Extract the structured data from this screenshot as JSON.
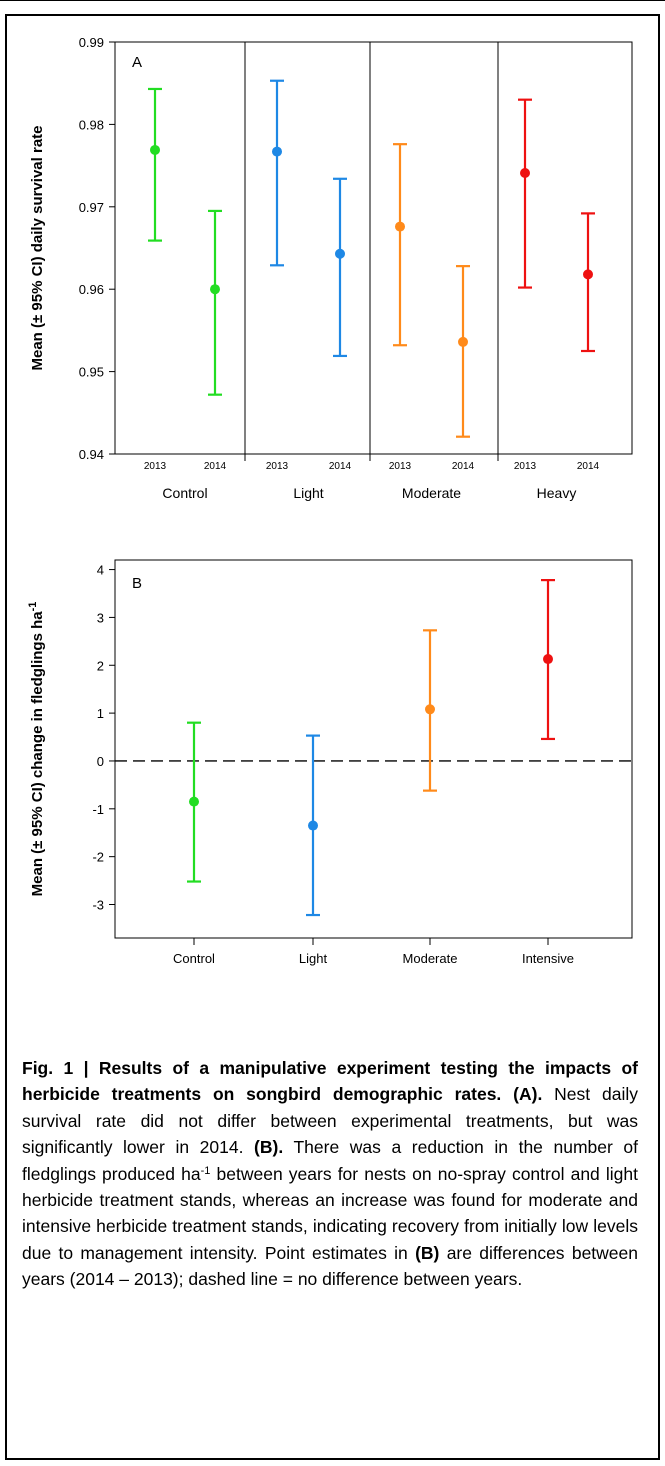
{
  "chart_data": [
    {
      "panel": "A",
      "type": "scatter",
      "ylabel": "Mean (± 95% CI) daily survival rate",
      "ylim": [
        0.94,
        0.99
      ],
      "y_ticks": [
        "0.94",
        "0.95",
        "0.96",
        "0.97",
        "0.98",
        "0.99"
      ],
      "groups": [
        "Control",
        "Light",
        "Moderate",
        "Heavy"
      ],
      "years": [
        "2013",
        "2014"
      ],
      "points": [
        {
          "group": "Control",
          "year": "2013",
          "mean": 0.9769,
          "lower": 0.9659,
          "upper": 0.9843,
          "color": "#22dd22"
        },
        {
          "group": "Control",
          "year": "2014",
          "mean": 0.96,
          "lower": 0.9472,
          "upper": 0.9695,
          "color": "#22dd22"
        },
        {
          "group": "Light",
          "year": "2013",
          "mean": 0.9767,
          "lower": 0.9629,
          "upper": 0.9853,
          "color": "#1e88e5"
        },
        {
          "group": "Light",
          "year": "2014",
          "mean": 0.9643,
          "lower": 0.9519,
          "upper": 0.9734,
          "color": "#1e88e5"
        },
        {
          "group": "Moderate",
          "year": "2013",
          "mean": 0.9676,
          "lower": 0.9532,
          "upper": 0.9776,
          "color": "#ff8a1a"
        },
        {
          "group": "Moderate",
          "year": "2014",
          "mean": 0.9536,
          "lower": 0.9421,
          "upper": 0.9628,
          "color": "#ff8a1a"
        },
        {
          "group": "Heavy",
          "year": "2013",
          "mean": 0.9741,
          "lower": 0.9602,
          "upper": 0.983,
          "color": "#ee1111"
        },
        {
          "group": "Heavy",
          "year": "2014",
          "mean": 0.9618,
          "lower": 0.9525,
          "upper": 0.9692,
          "color": "#ee1111"
        }
      ]
    },
    {
      "panel": "B",
      "type": "scatter",
      "ylabel": "Mean (± 95% CI) change in fledglings ha",
      "ylabel_sup": "-1",
      "ylim": [
        -3.7,
        4.2
      ],
      "y_ticks": [
        "-3",
        "-2",
        "-1",
        "0",
        "1",
        "2",
        "3",
        "4"
      ],
      "categories": [
        "Control",
        "Light",
        "Moderate",
        "Intensive"
      ],
      "reference_line": 0,
      "points": [
        {
          "category": "Control",
          "mean": -0.85,
          "lower": -2.52,
          "upper": 0.8,
          "color": "#22dd22"
        },
        {
          "category": "Light",
          "mean": -1.35,
          "lower": -3.22,
          "upper": 0.53,
          "color": "#1e88e5"
        },
        {
          "category": "Moderate",
          "mean": 1.08,
          "lower": -0.62,
          "upper": 2.73,
          "color": "#ff8a1a"
        },
        {
          "category": "Intensive",
          "mean": 2.13,
          "lower": 0.46,
          "upper": 3.78,
          "color": "#ee1111"
        }
      ]
    }
  ],
  "caption": {
    "figure_label": "Fig. 1 | Results of a manipulative experiment testing the impacts of herbicide treatments on songbird demographic rates.",
    "part_a_label": "(A).",
    "part_a_text": "Nest daily survival rate did not differ between experimental treatments, but was significantly lower in 2014.",
    "part_b_label": "(B).",
    "part_b_text_1": "There was a reduction in the number of fledglings produced ha",
    "part_b_sup": "-1",
    "part_b_text_2": "between years for nests on no-spray control and light herbicide treatment stands, whereas an increase was found for moderate and intensive herbicide treatment stands, indicating recovery from initially low levels due to management intensity. Point estimates in",
    "ref_b": "(B)",
    "end_text": "are differences between years (2014 – 2013); dashed line = no difference between years."
  }
}
